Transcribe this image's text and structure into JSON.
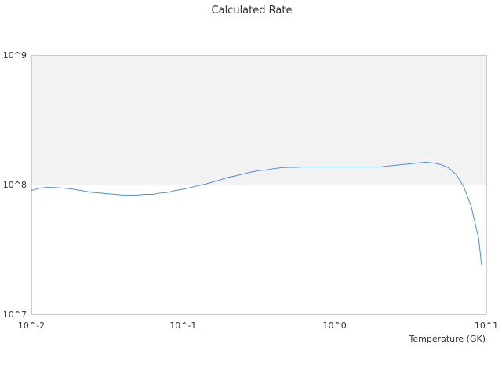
{
  "chart_data": {
    "type": "line",
    "title": "Calculated Rate",
    "xlabel": "Temperature (GK)",
    "ylabel": "",
    "x_scale": "log",
    "y_scale": "log",
    "xlim": [
      0.01,
      10
    ],
    "ylim": [
      10000000,
      1000000000
    ],
    "x_ticks": [
      0.01,
      0.1,
      1,
      10
    ],
    "x_tick_labels": [
      "10^-2",
      "10^-1",
      "10^0",
      "10^1"
    ],
    "y_ticks": [
      10000000,
      100000000,
      1000000000
    ],
    "y_tick_labels": [
      "10^7",
      "10^8",
      "10^9"
    ],
    "grid": false,
    "legend": "none",
    "band_fill": "#f2f2f2",
    "line_color": "#4a90d9",
    "axis_color": "#cccccc",
    "series": [
      {
        "x": [
          0.01,
          0.0115,
          0.0126,
          0.0138,
          0.0158,
          0.0178,
          0.02,
          0.0224,
          0.0251,
          0.0282,
          0.0316,
          0.0355,
          0.0398,
          0.0447,
          0.0501,
          0.0562,
          0.0631,
          0.0708,
          0.0794,
          0.0891,
          0.1,
          0.1122,
          0.1259,
          0.1413,
          0.1585,
          0.1778,
          0.1995,
          0.2239,
          0.2512,
          0.2818,
          0.3162,
          0.3548,
          0.3981,
          0.4467,
          0.5012,
          0.5623,
          0.631,
          0.708,
          0.7943,
          0.8913,
          1.0,
          1.122,
          1.259,
          1.413,
          1.585,
          1.778,
          1.995,
          2.239,
          2.512,
          2.818,
          3.162,
          3.548,
          3.981,
          4.467,
          5.012,
          5.623,
          6.31,
          7.08,
          7.943,
          8.913,
          9.3
        ],
        "y": [
          90000000,
          94000000,
          95000000,
          95000000,
          94000000,
          93000000,
          91000000,
          89000000,
          87000000,
          86000000,
          85000000,
          84000000,
          83000000,
          83000000,
          83000000,
          84000000,
          84000000,
          86000000,
          87000000,
          90000000,
          92000000,
          95000000,
          98000000,
          101000000,
          105000000,
          109000000,
          114000000,
          117000000,
          121000000,
          125000000,
          128000000,
          130000000,
          133000000,
          135000000,
          136000000,
          136000000,
          137000000,
          137000000,
          137000000,
          137000000,
          137000000,
          137000000,
          137000000,
          137000000,
          137000000,
          137000000,
          137000000,
          139000000,
          141000000,
          143000000,
          145000000,
          147000000,
          149000000,
          147000000,
          143000000,
          135000000,
          120000000,
          97000000,
          68000000,
          38000000,
          24000000
        ]
      }
    ]
  }
}
